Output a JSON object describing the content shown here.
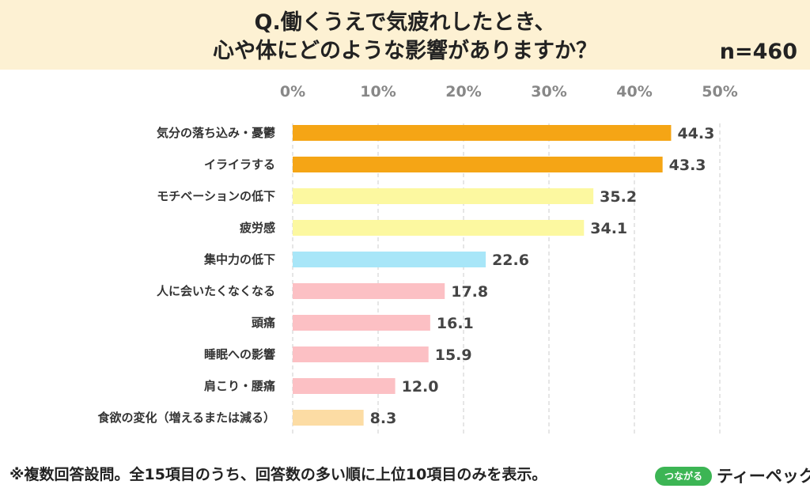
{
  "header": {
    "title_line1": "Q.働くうえで気疲れしたとき、",
    "title_line2": "心や体にどのような影響がありますか？",
    "sample_size": "n=460",
    "background": "#fdf1d3"
  },
  "chart_data": {
    "type": "bar",
    "orientation": "horizontal",
    "title": "Q.働くうえで気疲れしたとき、心や体にどのような影響がありますか？",
    "xlabel": "",
    "ylabel": "",
    "xlim": [
      0,
      50
    ],
    "x_ticks": [
      "0%",
      "10%",
      "20%",
      "30%",
      "40%",
      "50%"
    ],
    "grid": "vertical dashed",
    "categories": [
      "気分の落ち込み・憂鬱",
      "イライラする",
      "モチベーションの低下",
      "疲労感",
      "集中力の低下",
      "人に会いたくなくなる",
      "頭痛",
      "睡眠への影響",
      "肩こり・腰痛",
      "食欲の変化（増えるまたは減る）"
    ],
    "values": [
      44.3,
      43.3,
      35.2,
      34.1,
      22.6,
      17.8,
      16.1,
      15.9,
      12.0,
      8.3
    ],
    "value_labels": [
      "44.3",
      "43.3",
      "35.2",
      "34.1",
      "22.6",
      "17.8",
      "16.1",
      "15.9",
      "12.0",
      "8.3"
    ],
    "colors": [
      "#f5a515",
      "#f5a515",
      "#fcf8a0",
      "#fcf8a0",
      "#a8e6f8",
      "#fcc0c4",
      "#fcc0c4",
      "#fcc0c4",
      "#fcc0c4",
      "#fcdca4"
    ]
  },
  "footnote": "※複数回答設問。全15項目のうち、回答数の多い順に上位10項目のみを表示。",
  "logo": {
    "pill_text": "つながる",
    "word": "ティーペック",
    "pill_color": "#3cb554"
  }
}
